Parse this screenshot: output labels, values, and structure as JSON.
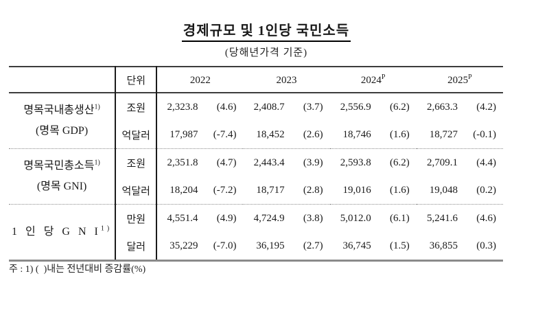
{
  "title": "경제규모 및 1인당 국민소득",
  "subtitle": "(당해년가격 기준)",
  "footnote": "주 : 1) (  )내는 전년대비 증감률(%)",
  "chart_data": {
    "type": "table",
    "title": "경제규모 및 1인당 국민소득",
    "subtitle": "(당해년가격 기준)",
    "columns": [
      "",
      "단위",
      "2022",
      "2023",
      "2024P",
      "2025P"
    ],
    "rows": [
      [
        "명목국내총생산1) (명목 GDP)",
        "조원",
        "2,323.8 (4.6)",
        "2,408.7 (3.7)",
        "2,556.9 (6.2)",
        "2,663.3 (4.2)"
      ],
      [
        "명목국내총생산1) (명목 GDP)",
        "억달러",
        "17,987 (-7.4)",
        "18,452 (2.6)",
        "18,746 (1.6)",
        "18,727 (-0.1)"
      ],
      [
        "명목국민총소득1) (명목 GNI)",
        "조원",
        "2,351.8 (4.7)",
        "2,443.4 (3.9)",
        "2,593.8 (6.2)",
        "2,709.1 (4.4)"
      ],
      [
        "명목국민총소득1) (명목 GNI)",
        "억달러",
        "18,204 (-7.2)",
        "18,717 (2.8)",
        "19,016 (1.6)",
        "19,048 (0.2)"
      ],
      [
        "1인당GNI1)",
        "만원",
        "4,551.4 (4.9)",
        "4,724.9 (3.8)",
        "5,012.0 (6.1)",
        "5,241.6 (4.6)"
      ],
      [
        "1인당GNI1)",
        "달러",
        "35,229 (-7.0)",
        "36,195 (2.7)",
        "36,745 (1.5)",
        "36,855 (0.3)"
      ]
    ]
  },
  "table": {
    "unit_header": "단위",
    "years": [
      "2022",
      "2023",
      "2024",
      "2025"
    ],
    "year_sups": [
      "",
      "",
      "P",
      "P"
    ],
    "groups": [
      {
        "label_main": "명목국내총생산",
        "label_sup": "1)",
        "label_sub": "(명목 GDP)",
        "rows": [
          {
            "unit": "조원",
            "cells": [
              {
                "value": "2,323.8",
                "pct": "(4.6)"
              },
              {
                "value": "2,408.7",
                "pct": "(3.7)"
              },
              {
                "value": "2,556.9",
                "pct": "(6.2)"
              },
              {
                "value": "2,663.3",
                "pct": "(4.2)"
              }
            ]
          },
          {
            "unit": "억달러",
            "cells": [
              {
                "value": "17,987",
                "pct": "(-7.4)"
              },
              {
                "value": "18,452",
                "pct": "(2.6)"
              },
              {
                "value": "18,746",
                "pct": "(1.6)"
              },
              {
                "value": "18,727",
                "pct": "(-0.1)"
              }
            ]
          }
        ]
      },
      {
        "label_main": "명목국민총소득",
        "label_sup": "1)",
        "label_sub": "(명목 GNI)",
        "rows": [
          {
            "unit": "조원",
            "cells": [
              {
                "value": "2,351.8",
                "pct": "(4.7)"
              },
              {
                "value": "2,443.4",
                "pct": "(3.9)"
              },
              {
                "value": "2,593.8",
                "pct": "(6.2)"
              },
              {
                "value": "2,709.1",
                "pct": "(4.4)"
              }
            ]
          },
          {
            "unit": "억달러",
            "cells": [
              {
                "value": "18,204",
                "pct": "(-7.2)"
              },
              {
                "value": "18,717",
                "pct": "(2.8)"
              },
              {
                "value": "19,016",
                "pct": "(1.6)"
              },
              {
                "value": "19,048",
                "pct": "(0.2)"
              }
            ]
          }
        ]
      },
      {
        "label_main": "1 인 당 G N I",
        "label_sup": "1)",
        "label_sub": "",
        "rows": [
          {
            "unit": "만원",
            "cells": [
              {
                "value": "4,551.4",
                "pct": "(4.9)"
              },
              {
                "value": "4,724.9",
                "pct": "(3.8)"
              },
              {
                "value": "5,012.0",
                "pct": "(6.1)"
              },
              {
                "value": "5,241.6",
                "pct": "(4.6)"
              }
            ]
          },
          {
            "unit": "달러",
            "cells": [
              {
                "value": "35,229",
                "pct": "(-7.0)"
              },
              {
                "value": "36,195",
                "pct": "(2.7)"
              },
              {
                "value": "36,745",
                "pct": "(1.5)"
              },
              {
                "value": "36,855",
                "pct": "(0.3)"
              }
            ]
          }
        ]
      }
    ]
  }
}
